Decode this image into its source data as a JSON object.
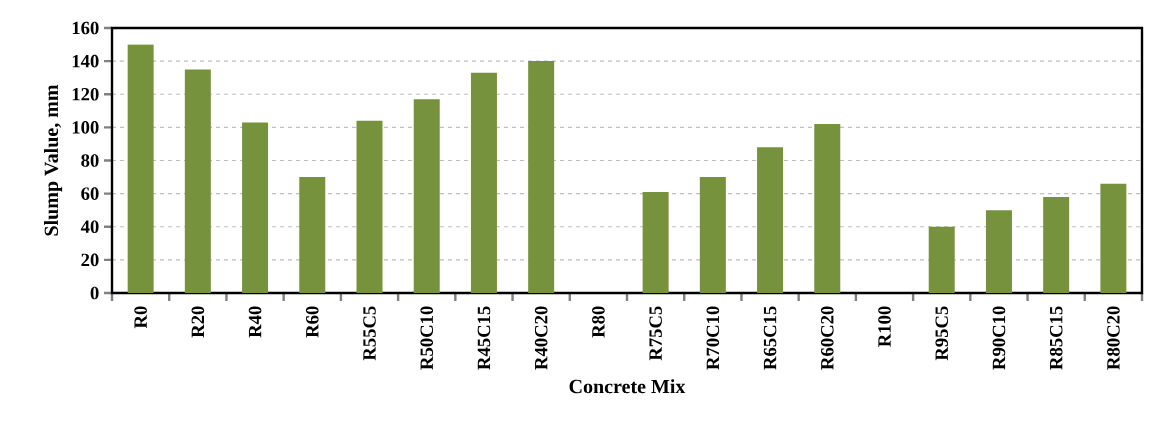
{
  "chart_data": {
    "type": "bar",
    "xlabel": "Concrete Mix",
    "ylabel": "Slump Value, mm",
    "categories": [
      "R0",
      "R20",
      "R40",
      "R60",
      "R55C5",
      "R50C10",
      "R45C15",
      "R40C20",
      "R80",
      "R75C5",
      "R70C10",
      "R65C15",
      "R60C20",
      "R100",
      "R95C5",
      "R90C10",
      "R85C15",
      "R80C20"
    ],
    "values": [
      150,
      135,
      103,
      70,
      104,
      117,
      133,
      140,
      null,
      61,
      70,
      88,
      102,
      null,
      40,
      50,
      58,
      66
    ],
    "color": "#77923c",
    "ylim": [
      0,
      160
    ],
    "yticks": [
      0,
      20,
      40,
      60,
      80,
      100,
      120,
      140,
      160
    ],
    "grid": "y"
  }
}
